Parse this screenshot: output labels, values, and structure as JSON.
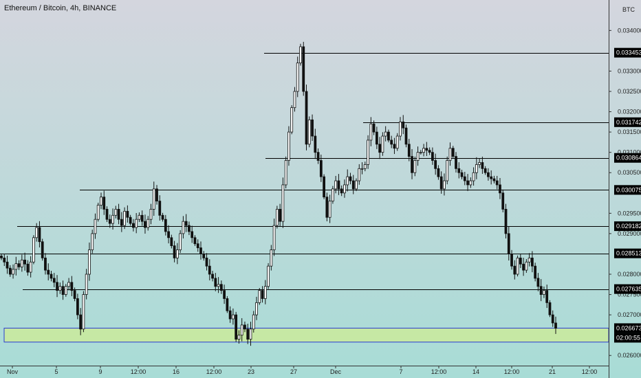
{
  "header": {
    "title": "Ethereum / Bitcoin, 4h, BINANCE"
  },
  "chart_data": {
    "type": "candlestick",
    "title": "Ethereum / Bitcoin, 4h, BINANCE",
    "price_unit": "BTC",
    "ylim": [
      0.02575,
      0.03475
    ],
    "y_ticks": [
      "0.026000",
      "0.027000",
      "0.027500",
      "0.028000",
      "0.029000",
      "0.029500",
      "0.030500",
      "0.031000",
      "0.031500",
      "0.032000",
      "0.032500",
      "0.033000",
      "0.034000"
    ],
    "x_ticks": [
      "Nov",
      "5",
      "9",
      "12:00",
      "16",
      "12:00",
      "23",
      "27",
      "Dec",
      "7",
      "12:00",
      "14",
      "12:00",
      "21",
      "12:00"
    ],
    "grid": false,
    "background_gradient": [
      "#d4d6de",
      "#a8dcd6"
    ],
    "colors": {
      "up": "#ffffff",
      "down": "#111111",
      "wick": "#111111",
      "line": "#000000",
      "zone_fill": "#c6e8a4",
      "zone_border": "#2a3bd0",
      "tag_bg": "#000000",
      "tag_text": "#ffffff"
    },
    "levels": [
      {
        "value": 0.033453,
        "label": "0.033453"
      },
      {
        "value": 0.031742,
        "label": "0.031742"
      },
      {
        "value": 0.030864,
        "label": "0.030864"
      },
      {
        "value": 0.030075,
        "label": "0.030075"
      },
      {
        "value": 0.029182,
        "label": "0.029182"
      },
      {
        "value": 0.028513,
        "label": "0.028513"
      },
      {
        "value": 0.027635,
        "label": "0.027635"
      }
    ],
    "last_price": {
      "value": 0.026673,
      "label": "0.026673",
      "countdown": "02:00:55"
    },
    "support_zone": {
      "top": 0.026673,
      "bottom": 0.02633
    },
    "price_path": [
      0.0284,
      0.0283,
      0.02815,
      0.028,
      0.02812,
      0.02826,
      0.02818,
      0.02835,
      0.02825,
      0.02805,
      0.0283,
      0.0289,
      0.02915,
      0.0288,
      0.0284,
      0.0281,
      0.028,
      0.0279,
      0.0278,
      0.0276,
      0.0277,
      0.0275,
      0.0277,
      0.0278,
      0.0276,
      0.0274,
      0.027,
      0.02665,
      0.0275,
      0.028,
      0.0286,
      0.029,
      0.02935,
      0.0297,
      0.0299,
      0.0296,
      0.02935,
      0.02925,
      0.02945,
      0.0296,
      0.02935,
      0.0292,
      0.02955,
      0.0294,
      0.02925,
      0.02915,
      0.02935,
      0.02945,
      0.0293,
      0.02915,
      0.02935,
      0.0296,
      0.0301,
      0.0298,
      0.02945,
      0.02935,
      0.02905,
      0.0289,
      0.0287,
      0.0284,
      0.0286,
      0.029,
      0.0293,
      0.0292,
      0.02905,
      0.0289,
      0.02875,
      0.02865,
      0.0285,
      0.0284,
      0.0282,
      0.028,
      0.0279,
      0.0277,
      0.02775,
      0.0276,
      0.0274,
      0.0271,
      0.0269,
      0.027,
      0.0264,
      0.0265,
      0.02675,
      0.02665,
      0.0264,
      0.02665,
      0.027,
      0.0273,
      0.0276,
      0.0274,
      0.0277,
      0.0282,
      0.0286,
      0.0292,
      0.0296,
      0.0293,
      0.0302,
      0.0308,
      0.0315,
      0.0321,
      0.0325,
      0.0332,
      0.0336,
      0.0325,
      0.0312,
      0.0318,
      0.0314,
      0.031,
      0.0308,
      0.0304,
      0.0299,
      0.0294,
      0.0298,
      0.0301,
      0.0303,
      0.0301,
      0.03,
      0.0302,
      0.0304,
      0.0303,
      0.0301,
      0.0303,
      0.0306,
      0.0306,
      0.0307,
      0.0313,
      0.0317,
      0.0315,
      0.0312,
      0.031,
      0.0314,
      0.0315,
      0.0313,
      0.0312,
      0.0311,
      0.0314,
      0.03175,
      0.0316,
      0.0312,
      0.0309,
      0.0305,
      0.0308,
      0.031,
      0.031,
      0.0311,
      0.03105,
      0.031,
      0.0308,
      0.0306,
      0.0304,
      0.0301,
      0.0303,
      0.0308,
      0.0311,
      0.0309,
      0.0306,
      0.0305,
      0.0304,
      0.0303,
      0.0302,
      0.0303,
      0.0305,
      0.0307,
      0.03075,
      0.0306,
      0.0305,
      0.0304,
      0.03035,
      0.0303,
      0.0302,
      0.03,
      0.0296,
      0.029,
      0.0285,
      0.0282,
      0.028,
      0.0284,
      0.02825,
      0.0281,
      0.0283,
      0.0284,
      0.0282,
      0.0279,
      0.0277,
      0.0275,
      0.0276,
      0.0273,
      0.027,
      0.0268,
      0.02667
    ]
  }
}
